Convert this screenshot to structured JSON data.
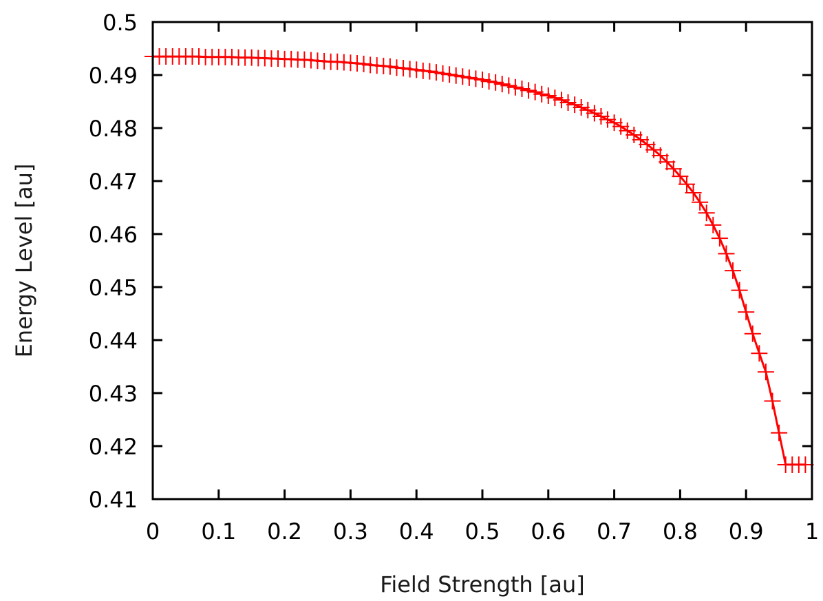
{
  "chart_data": {
    "type": "line",
    "title": "",
    "xlabel": "Field Strength [au]",
    "ylabel": "Energy Level [au]",
    "xlim": [
      0,
      1
    ],
    "ylim": [
      0.41,
      0.5
    ],
    "x_ticks": [
      "0",
      "0.1",
      "0.2",
      "0.3",
      "0.4",
      "0.5",
      "0.6",
      "0.7",
      "0.8",
      "0.9",
      "1"
    ],
    "y_ticks": [
      "0.41",
      "0.42",
      "0.43",
      "0.44",
      "0.45",
      "0.46",
      "0.47",
      "0.48",
      "0.49",
      "0.5"
    ],
    "grid": false,
    "legend": "none",
    "color": "#ff0000",
    "series": [
      {
        "style": "line+crosses",
        "x": [
          0,
          0.01,
          0.02,
          0.03,
          0.04,
          0.05,
          0.06,
          0.07,
          0.08,
          0.09,
          0.1,
          0.11,
          0.12,
          0.13,
          0.14,
          0.15,
          0.16,
          0.17,
          0.18,
          0.19,
          0.2,
          0.21,
          0.22,
          0.23,
          0.24,
          0.25,
          0.26,
          0.27,
          0.28,
          0.29,
          0.3,
          0.31,
          0.32,
          0.33,
          0.34,
          0.35,
          0.36,
          0.37,
          0.38,
          0.39,
          0.4,
          0.41,
          0.42,
          0.43,
          0.44,
          0.45,
          0.46,
          0.47,
          0.48,
          0.49,
          0.5,
          0.51,
          0.52,
          0.53,
          0.54,
          0.55,
          0.56,
          0.57,
          0.58,
          0.59,
          0.6,
          0.61,
          0.62,
          0.63,
          0.64,
          0.65,
          0.66,
          0.67,
          0.68,
          0.69,
          0.7,
          0.71,
          0.72,
          0.73,
          0.74,
          0.75,
          0.76,
          0.77,
          0.78,
          0.79,
          0.8,
          0.81,
          0.82,
          0.83,
          0.84,
          0.85,
          0.86,
          0.87,
          0.88,
          0.89,
          0.9,
          0.91,
          0.92,
          0.93,
          0.94,
          0.95,
          0.96,
          0.97,
          0.98,
          0.99
        ],
        "y": [
          0.4935,
          0.4935,
          0.4935,
          0.4935,
          0.4935,
          0.4935,
          0.4935,
          0.4935,
          0.4934,
          0.4934,
          0.4934,
          0.4934,
          0.4934,
          0.4933,
          0.4933,
          0.4933,
          0.4932,
          0.4932,
          0.4931,
          0.4931,
          0.493,
          0.493,
          0.4929,
          0.4929,
          0.4928,
          0.4927,
          0.4926,
          0.4925,
          0.4925,
          0.4924,
          0.4923,
          0.4922,
          0.4921,
          0.4919,
          0.4918,
          0.4917,
          0.4916,
          0.4914,
          0.4913,
          0.4911,
          0.491,
          0.4908,
          0.4907,
          0.4905,
          0.4903,
          0.4901,
          0.4899,
          0.4897,
          0.4895,
          0.4893,
          0.4891,
          0.4888,
          0.4886,
          0.4883,
          0.488,
          0.4877,
          0.4874,
          0.4871,
          0.4868,
          0.4864,
          0.4861,
          0.4857,
          0.4853,
          0.4848,
          0.4844,
          0.4839,
          0.4834,
          0.4828,
          0.4822,
          0.4816,
          0.481,
          0.4803,
          0.4795,
          0.4787,
          0.4778,
          0.4769,
          0.4759,
          0.4748,
          0.4736,
          0.4723,
          0.4709,
          0.4694,
          0.4678,
          0.466,
          0.464,
          0.4617,
          0.4592,
          0.4563,
          0.4531,
          0.4494,
          0.4453,
          0.4412,
          0.4375,
          0.434,
          0.4285,
          0.4225,
          0.4165,
          0.4165,
          0.4165,
          0.4165
        ]
      }
    ]
  }
}
